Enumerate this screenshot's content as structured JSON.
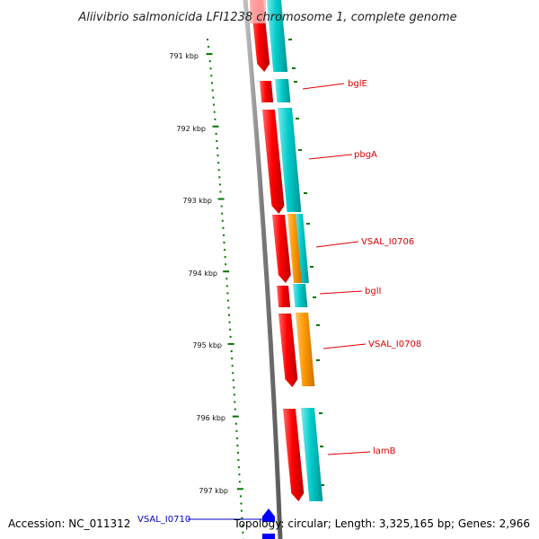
{
  "title": "Aliivibrio salmonicida LFI1238 chromosome 1, complete genome",
  "footer": {
    "accession": "Accession: NC_011312",
    "topology": "Topology: circular; Length: 3,325,165 bp; Genes: 2,966"
  },
  "ticks": [
    "791 kbp",
    "792 kbp",
    "793 kbp",
    "794 kbp",
    "795 kbp",
    "796 kbp",
    "797 kbp"
  ],
  "genes": [
    "bglE",
    "pbgA",
    "VSAL_I0706",
    "bglI",
    "VSAL_I0708",
    "lamB",
    "VSAL_I0710"
  ],
  "colors": {
    "backbone": "#808080",
    "cds_red": "#ff0000",
    "feature_cyan": "#00cccc",
    "feature_orange": "#ff9900",
    "tick": "#007700",
    "label_red": "#dd0000",
    "label_blue": "#0000cc",
    "marker_blue": "#0000ff"
  }
}
